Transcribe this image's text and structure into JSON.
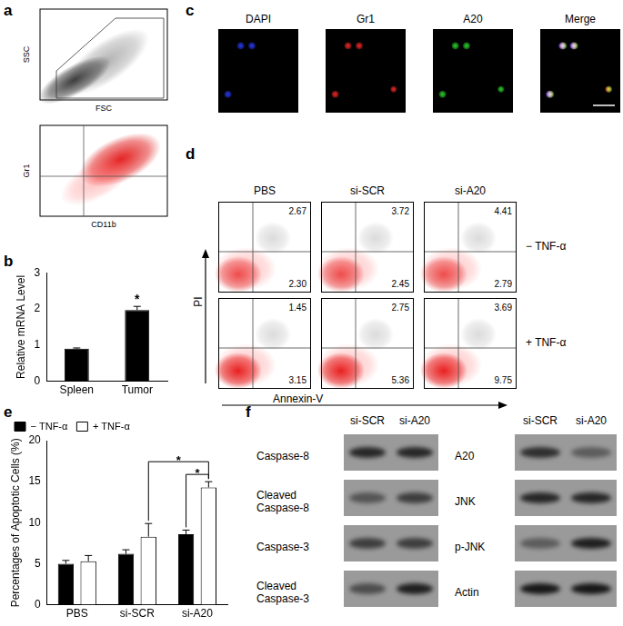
{
  "figure": {
    "a": {
      "letter": "a",
      "plots": [
        {
          "x_label": "FSC",
          "y_label": "SSC"
        },
        {
          "x_label": "CD11b",
          "y_label": "Gr1"
        }
      ]
    },
    "b": {
      "letter": "b"
    },
    "c": {
      "letter": "c",
      "channels": [
        {
          "label": "DAPI",
          "color": "#2a3cff"
        },
        {
          "label": "Gr1",
          "color": "#ff2a2a"
        },
        {
          "label": "A20",
          "color": "#2ee02e"
        },
        {
          "label": "Merge"
        }
      ]
    },
    "d": {
      "letter": "d",
      "columns": [
        "PBS",
        "si-SCR",
        "si-A20"
      ],
      "x_label": "Annexin-V",
      "y_label": "PI",
      "rows": [
        {
          "label": "− TNF-α",
          "upper_right": [
            "2.67",
            "3.72",
            "4.41"
          ],
          "lower_right": [
            "2.30",
            "2.45",
            "2.79"
          ]
        },
        {
          "label": "+ TNF-α",
          "upper_right": [
            "1.45",
            "2.75",
            "3.69"
          ],
          "lower_right": [
            "3.15",
            "5.36",
            "9.75"
          ]
        }
      ]
    },
    "e": {
      "letter": "e"
    },
    "f": {
      "letter": "f",
      "blots": [
        {
          "columns": [
            "si-SCR",
            "si-A20"
          ],
          "rows": [
            {
              "label": "Caspase-8",
              "bands": [
                0.75,
                0.75
              ]
            },
            {
              "label": "Cleaved Caspase-8",
              "bands": [
                0.45,
                0.6
              ]
            },
            {
              "label": "Caspase-3",
              "bands": [
                0.6,
                0.6
              ]
            },
            {
              "label": "Cleaved Caspase-3",
              "bands": [
                0.5,
                0.8
              ]
            }
          ]
        },
        {
          "columns": [
            "si-SCR",
            "si-A20"
          ],
          "rows": [
            {
              "label": "A20",
              "bands": [
                0.7,
                0.4
              ]
            },
            {
              "label": "JNK",
              "bands": [
                0.75,
                0.75
              ]
            },
            {
              "label": "p-JNK",
              "bands": [
                0.4,
                0.8
              ]
            },
            {
              "label": "Actin",
              "bands": [
                0.85,
                0.85
              ]
            }
          ]
        }
      ]
    }
  },
  "chart_data": [
    {
      "type": "bar",
      "categories": [
        "Spleen",
        "Tumor"
      ],
      "values": [
        0.9,
        1.97
      ],
      "errors": [
        0.02,
        0.1
      ],
      "color": "#000000",
      "ylim": [
        0,
        3
      ],
      "yticks": [
        0,
        1,
        2,
        3
      ],
      "y_label": "Relative mRNA Level",
      "grid": false,
      "annotations": [
        {
          "category": "Tumor",
          "text": "*"
        }
      ]
    },
    {
      "type": "bar",
      "categories": [
        "PBS",
        "si-SCR",
        "si-A20"
      ],
      "series": [
        {
          "name": "− TNF-α",
          "color": "#000000",
          "values": [
            5.0,
            6.2,
            8.6
          ],
          "errors": [
            0.4,
            0.5,
            0.5
          ]
        },
        {
          "name": "+ TNF-α",
          "color": "#ffffff",
          "values": [
            5.3,
            8.3,
            14.3
          ],
          "errors": [
            0.7,
            1.6,
            0.7
          ]
        }
      ],
      "ylim": [
        0,
        20
      ],
      "yticks": [
        0,
        5,
        10,
        15,
        20
      ],
      "y_label": "Percentages of Apoptotic Cells (%)",
      "grid": false,
      "legend": "top",
      "brackets": [
        {
          "from": {
            "category": "si-A20",
            "series": "− TNF-α"
          },
          "to": {
            "category": "si-A20",
            "series": "+ TNF-α"
          },
          "text": "*"
        },
        {
          "from": {
            "category": "si-SCR",
            "series": "+ TNF-α"
          },
          "to": {
            "category": "si-A20",
            "series": "+ TNF-α"
          },
          "text": "*"
        }
      ]
    }
  ]
}
